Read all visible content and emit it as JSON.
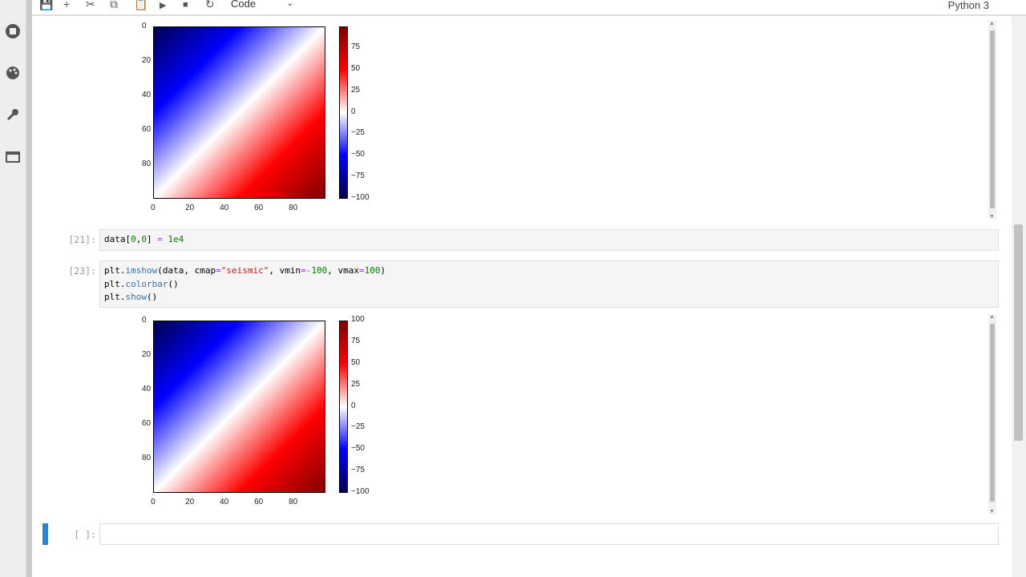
{
  "toolbar": {
    "icons": [
      "save-icon",
      "plus-icon",
      "cut-icon",
      "copy-icon",
      "paste-icon",
      "run-icon",
      "stop-icon",
      "restart-icon"
    ],
    "cell_type": "Code",
    "kernel": "Python 3"
  },
  "sidebar": {
    "icons": [
      "running-icon",
      "palette-icon",
      "wrench-icon",
      "tabs-icon"
    ]
  },
  "cells": [
    {
      "prompt": "[21]:",
      "code": "data[0,0] = 1e4"
    },
    {
      "prompt": "[23]:",
      "code_lines": [
        "plt.imshow(data, cmap=\"seismic\", vmin=-100, vmax=100)",
        "plt.colorbar()",
        "plt.show()"
      ]
    },
    {
      "prompt": "[ ]:",
      "code": ""
    }
  ],
  "chart_data": [
    {
      "type": "heatmap",
      "colormap": "seismic",
      "shape": [
        100,
        100
      ],
      "vmin": -100,
      "vmax": 100,
      "xticks": [
        "0",
        "20",
        "40",
        "60",
        "80"
      ],
      "yticks": [
        "0",
        "20",
        "40",
        "60",
        "80"
      ],
      "colorbar_ticks": [
        "75",
        "50",
        "25",
        "0",
        "−25",
        "−50",
        "−75",
        "−100"
      ]
    },
    {
      "type": "heatmap",
      "colormap": "seismic",
      "shape": [
        100,
        100
      ],
      "vmin": -100,
      "vmax": 100,
      "xticks": [
        "0",
        "20",
        "40",
        "60",
        "80"
      ],
      "yticks": [
        "0",
        "20",
        "40",
        "60",
        "80"
      ],
      "colorbar_ticks": [
        "100",
        "75",
        "50",
        "25",
        "0",
        "−25",
        "−50",
        "−75",
        "−100"
      ]
    }
  ],
  "colors": {
    "accent": "#1e88e5"
  }
}
